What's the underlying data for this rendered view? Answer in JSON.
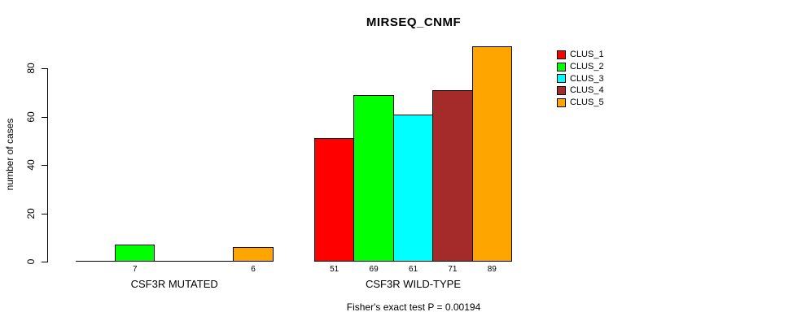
{
  "chart_data": {
    "type": "bar",
    "title": "MIRSEQ_CNMF",
    "xlabel": "",
    "ylabel": "number of cases",
    "categories": [
      "CSF3R MUTATED",
      "CSF3R WILD-TYPE"
    ],
    "series": [
      {
        "name": "CLUS_1",
        "color": "#FF0000",
        "values": [
          0,
          51
        ]
      },
      {
        "name": "CLUS_2",
        "color": "#00FF00",
        "values": [
          7,
          69
        ]
      },
      {
        "name": "CLUS_3",
        "color": "#00FFFF",
        "values": [
          0,
          61
        ]
      },
      {
        "name": "CLUS_4",
        "color": "#A52A2A",
        "values": [
          0,
          71
        ]
      },
      {
        "name": "CLUS_5",
        "color": "#FFA500",
        "values": [
          6,
          89
        ]
      }
    ],
    "y_ticks": [
      0,
      20,
      40,
      60,
      80
    ],
    "ylim": [
      0,
      89
    ],
    "grid": false,
    "legend_position": "top-right",
    "bar_border_color": "#000000",
    "value_labels_shown": [
      7,
      6,
      51,
      69,
      61,
      71,
      89
    ]
  },
  "footer": "Fisher's exact test P = 0.00194"
}
